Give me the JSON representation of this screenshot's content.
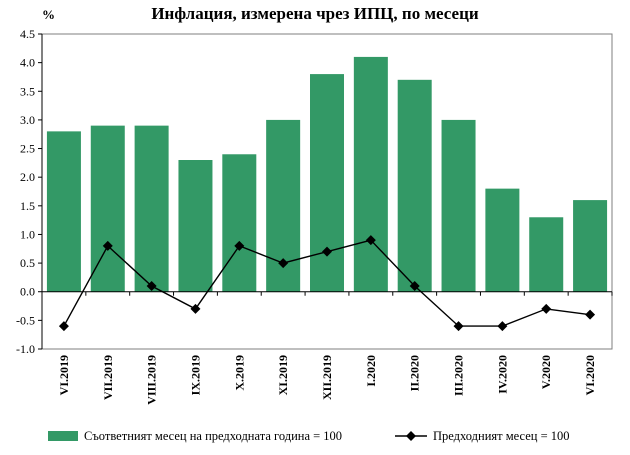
{
  "chart_data": {
    "type": "bar",
    "title": "Инфлация, измерена чрез ИПЦ, по месеци",
    "unit_label": "%",
    "categories": [
      "VI.2019",
      "VII.2019",
      "VIII.2019",
      "IX.2019",
      "X.2019",
      "XI.2019",
      "XII.2019",
      "I.2020",
      "II.2020",
      "III.2020",
      "IV.2020",
      "V.2020",
      "VI.2020"
    ],
    "ylim": [
      -1.0,
      4.5
    ],
    "yticks": [
      "-1.0",
      "-0.5",
      "0.0",
      "0.5",
      "1.0",
      "1.5",
      "2.0",
      "2.5",
      "3.0",
      "3.5",
      "4.0",
      "4.5"
    ],
    "grid": false,
    "legend_position": "bottom",
    "series": [
      {
        "name": "Съответният месец на предходната година = 100",
        "type": "bar",
        "color": "#339966",
        "values": [
          2.8,
          2.9,
          2.9,
          2.3,
          2.4,
          3.0,
          3.8,
          4.1,
          3.7,
          3.0,
          1.8,
          1.3,
          1.6
        ]
      },
      {
        "name": "Предходният месец = 100",
        "type": "line",
        "color": "#000000",
        "marker": "diamond",
        "values": [
          -0.6,
          0.8,
          0.1,
          -0.3,
          0.8,
          0.5,
          0.7,
          0.9,
          0.1,
          -0.6,
          -0.6,
          -0.3,
          -0.4
        ]
      }
    ]
  }
}
